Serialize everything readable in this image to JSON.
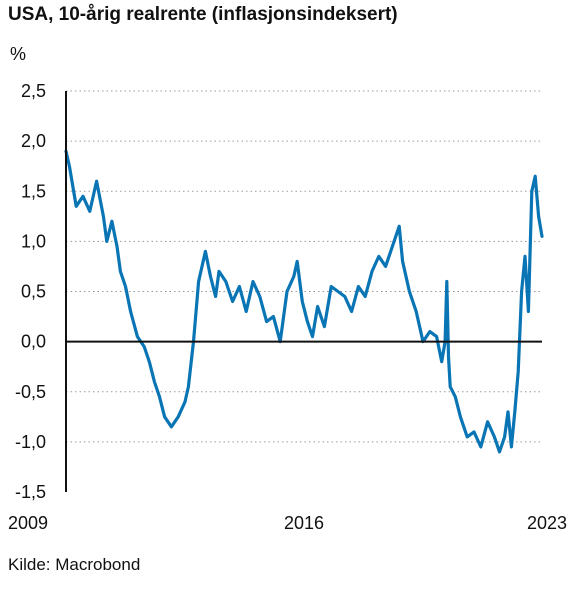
{
  "chart_data": {
    "type": "line",
    "title": "USA, 10-årig realrente (inflasjonsindeksert)",
    "ylabel": "%",
    "source": "Kilde: Macrobond",
    "ylim": [
      -1.5,
      2.5
    ],
    "yticks": [
      2.5,
      2.0,
      1.5,
      1.0,
      0.5,
      0.0,
      -0.5,
      -1.0,
      -1.5
    ],
    "ytick_labels": [
      "2,5",
      "2,0",
      "1,5",
      "1,0",
      "0,5",
      "0,0",
      "-0,5",
      "-1,0",
      "-1,5"
    ],
    "xlim": [
      2009.0,
      2023.0
    ],
    "xticks": [
      2009,
      2016,
      2023
    ],
    "xtick_labels": [
      "2009",
      "2016",
      "2023"
    ],
    "grid": "horizontal dotted",
    "line_color": "#0a75b5",
    "series": [
      {
        "x": [
          2009.0,
          2009.1,
          2009.2,
          2009.3,
          2009.5,
          2009.7,
          2009.9,
          2010.1,
          2010.2,
          2010.35,
          2010.5,
          2010.6,
          2010.75,
          2010.9,
          2011.1,
          2011.3,
          2011.45,
          2011.6,
          2011.75,
          2011.9,
          2012.1,
          2012.3,
          2012.5,
          2012.6,
          2012.75,
          2012.9,
          2013.1,
          2013.25,
          2013.4,
          2013.5,
          2013.7,
          2013.9,
          2014.1,
          2014.3,
          2014.5,
          2014.7,
          2014.9,
          2015.1,
          2015.3,
          2015.5,
          2015.7,
          2015.8,
          2015.95,
          2016.1,
          2016.25,
          2016.4,
          2016.6,
          2016.8,
          2017.0,
          2017.2,
          2017.4,
          2017.6,
          2017.8,
          2018.0,
          2018.2,
          2018.4,
          2018.6,
          2018.8,
          2018.9,
          2019.1,
          2019.3,
          2019.5,
          2019.7,
          2019.9,
          2020.05,
          2020.15,
          2020.2,
          2020.25,
          2020.3,
          2020.45,
          2020.6,
          2020.8,
          2021.0,
          2021.2,
          2021.4,
          2021.6,
          2021.75,
          2021.9,
          2022.0,
          2022.1,
          2022.2,
          2022.3,
          2022.4,
          2022.5,
          2022.6,
          2022.7,
          2022.8,
          2022.9,
          2023.0
        ],
        "y": [
          1.9,
          1.75,
          1.55,
          1.35,
          1.45,
          1.3,
          1.6,
          1.25,
          1.0,
          1.2,
          0.95,
          0.7,
          0.55,
          0.3,
          0.05,
          -0.05,
          -0.2,
          -0.4,
          -0.55,
          -0.75,
          -0.85,
          -0.75,
          -0.6,
          -0.45,
          0.0,
          0.6,
          0.9,
          0.65,
          0.45,
          0.7,
          0.6,
          0.4,
          0.55,
          0.3,
          0.6,
          0.45,
          0.2,
          0.25,
          0.0,
          0.5,
          0.65,
          0.8,
          0.4,
          0.2,
          0.05,
          0.35,
          0.15,
          0.55,
          0.5,
          0.45,
          0.3,
          0.55,
          0.45,
          0.7,
          0.85,
          0.75,
          0.95,
          1.15,
          0.8,
          0.5,
          0.3,
          0.0,
          0.1,
          0.05,
          -0.2,
          0.0,
          0.6,
          -0.15,
          -0.45,
          -0.55,
          -0.75,
          -0.95,
          -0.9,
          -1.05,
          -0.8,
          -0.95,
          -1.1,
          -0.95,
          -0.7,
          -1.05,
          -0.7,
          -0.3,
          0.5,
          0.85,
          0.3,
          1.5,
          1.65,
          1.25,
          1.05
        ]
      }
    ]
  }
}
